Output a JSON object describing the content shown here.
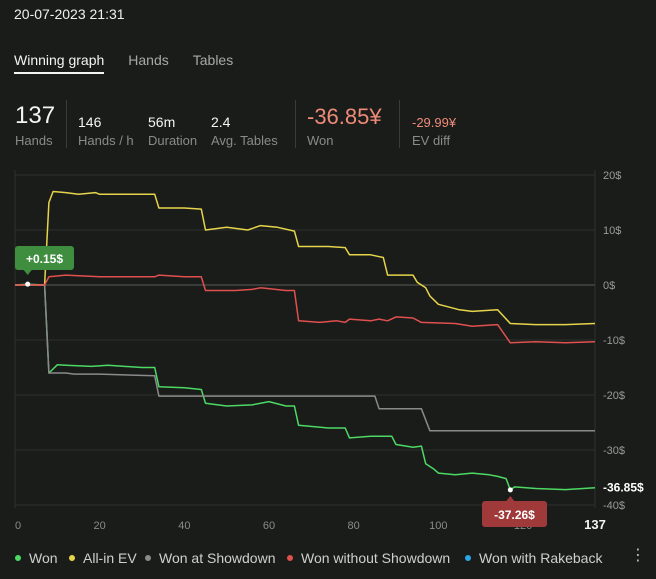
{
  "timestamp": "20-07-2023 21:31",
  "tabs": [
    {
      "label": "Winning graph",
      "active": true
    },
    {
      "label": "Hands",
      "active": false
    },
    {
      "label": "Tables",
      "active": false
    }
  ],
  "stats": {
    "hands": {
      "value": "137",
      "label": "Hands"
    },
    "hands_per_hour": {
      "value": "146",
      "label": "Hands / h"
    },
    "duration": {
      "value": "56m",
      "label": "Duration"
    },
    "avg_tables": {
      "value": "2.4",
      "label": "Avg. Tables"
    },
    "won": {
      "value": "-36.85¥",
      "label": "Won"
    },
    "ev_diff": {
      "value": "-29.99¥",
      "label": "EV diff"
    }
  },
  "colors": {
    "won": "#4cd964",
    "all_in_ev": "#e6d54a",
    "showdown": "#8a8a8a",
    "without_showdown": "#e0504e",
    "rakeback": "#2aa6e6",
    "negative_accent": "#ef8a78",
    "badge_green": "#3f8e3f",
    "badge_red": "#a03a3a"
  },
  "chart_data": {
    "type": "line",
    "xlim": [
      0,
      137
    ],
    "ylim": [
      -40,
      20
    ],
    "x_ticks": [
      "0",
      "20",
      "40",
      "60",
      "80",
      "100",
      "120"
    ],
    "x_end_label": "137",
    "y_ticks": [
      "20$",
      "10$",
      "0$",
      "-10$",
      "-20$",
      "-30$",
      "-40$"
    ],
    "y_tick_values": [
      20,
      10,
      0,
      -10,
      -20,
      -30,
      -40
    ],
    "annotations": [
      {
        "text": "+0.15$",
        "x": 3,
        "y": 0.15
      },
      {
        "text": "-37.26$",
        "x": 117,
        "y": -37.26
      }
    ],
    "end_label": {
      "text": "-36.85$",
      "y": -36.85
    },
    "series": [
      {
        "name": "Won",
        "color": "#4cd964",
        "points": [
          [
            0,
            0
          ],
          [
            3,
            0.15
          ],
          [
            7,
            0
          ],
          [
            8,
            -16
          ],
          [
            10,
            -14.5
          ],
          [
            12,
            -14.6
          ],
          [
            18,
            -14.8
          ],
          [
            22,
            -14.6
          ],
          [
            30,
            -15
          ],
          [
            33,
            -15
          ],
          [
            34,
            -18.5
          ],
          [
            40,
            -18.7
          ],
          [
            44,
            -19
          ],
          [
            45,
            -21.5
          ],
          [
            50,
            -22
          ],
          [
            56,
            -21.8
          ],
          [
            60,
            -21.2
          ],
          [
            64,
            -22
          ],
          [
            66,
            -22
          ],
          [
            67,
            -25.5
          ],
          [
            74,
            -26
          ],
          [
            78,
            -26
          ],
          [
            79,
            -27.8
          ],
          [
            84,
            -27.5
          ],
          [
            89,
            -27.5
          ],
          [
            90,
            -29
          ],
          [
            94,
            -29.5
          ],
          [
            96,
            -29.3
          ],
          [
            97,
            -32.5
          ],
          [
            99,
            -33.5
          ],
          [
            100,
            -34.2
          ],
          [
            104,
            -34.5
          ],
          [
            108,
            -34.2
          ],
          [
            112,
            -34.5
          ],
          [
            114,
            -34.8
          ],
          [
            116,
            -35.2
          ],
          [
            117,
            -37.26
          ],
          [
            118,
            -36.7
          ],
          [
            123,
            -37
          ],
          [
            130,
            -37.2
          ],
          [
            137,
            -36.85
          ]
        ]
      },
      {
        "name": "All-in EV",
        "color": "#e6d54a",
        "points": [
          [
            0,
            0
          ],
          [
            7,
            0
          ],
          [
            8,
            15
          ],
          [
            9,
            17
          ],
          [
            12,
            16.8
          ],
          [
            15,
            16.5
          ],
          [
            19,
            16.8
          ],
          [
            20,
            16.5
          ],
          [
            33,
            16.5
          ],
          [
            34,
            14
          ],
          [
            40,
            14
          ],
          [
            44,
            13.8
          ],
          [
            45,
            10
          ],
          [
            50,
            10.5
          ],
          [
            55,
            10
          ],
          [
            58,
            10.8
          ],
          [
            62,
            10.5
          ],
          [
            66,
            9.8
          ],
          [
            67,
            7
          ],
          [
            74,
            7
          ],
          [
            78,
            6.8
          ],
          [
            79,
            5.5
          ],
          [
            84,
            5.5
          ],
          [
            87,
            5
          ],
          [
            88,
            1.8
          ],
          [
            94,
            1.8
          ],
          [
            95,
            0.5
          ],
          [
            97,
            -0.5
          ],
          [
            98,
            -2
          ],
          [
            100,
            -3.5
          ],
          [
            105,
            -4.5
          ],
          [
            108,
            -4.8
          ],
          [
            114,
            -4.5
          ],
          [
            117,
            -7
          ],
          [
            123,
            -7.2
          ],
          [
            130,
            -7.2
          ],
          [
            137,
            -7
          ]
        ]
      },
      {
        "name": "Won at Showdown",
        "color": "#8a8a8a",
        "points": [
          [
            0,
            0
          ],
          [
            7,
            0
          ],
          [
            8,
            -16
          ],
          [
            12,
            -16
          ],
          [
            14,
            -16.2
          ],
          [
            20,
            -16.2
          ],
          [
            33,
            -16.5
          ],
          [
            34,
            -20.2
          ],
          [
            50,
            -20.2
          ],
          [
            60,
            -20.2
          ],
          [
            65,
            -20.2
          ],
          [
            85,
            -20.2
          ],
          [
            86,
            -22.5
          ],
          [
            96,
            -22.5
          ],
          [
            98,
            -26.5
          ],
          [
            137,
            -26.5
          ]
        ]
      },
      {
        "name": "Won without Showdown",
        "color": "#e0504e",
        "points": [
          [
            0,
            0
          ],
          [
            7,
            0
          ],
          [
            8,
            1.5
          ],
          [
            12,
            1.8
          ],
          [
            20,
            1.5
          ],
          [
            33,
            1.5
          ],
          [
            34,
            1.8
          ],
          [
            40,
            1.5
          ],
          [
            44,
            1.5
          ],
          [
            45,
            -1
          ],
          [
            52,
            -1
          ],
          [
            56,
            -0.8
          ],
          [
            58,
            -0.5
          ],
          [
            64,
            -1
          ],
          [
            66,
            -1
          ],
          [
            67,
            -6.5
          ],
          [
            72,
            -6.8
          ],
          [
            76,
            -6.5
          ],
          [
            78,
            -6.8
          ],
          [
            79,
            -6.2
          ],
          [
            84,
            -6.5
          ],
          [
            86,
            -6.2
          ],
          [
            88,
            -6.5
          ],
          [
            90,
            -5.8
          ],
          [
            94,
            -6
          ],
          [
            96,
            -6.8
          ],
          [
            104,
            -7
          ],
          [
            108,
            -7.5
          ],
          [
            114,
            -7.2
          ],
          [
            117,
            -10.5
          ],
          [
            123,
            -10.3
          ],
          [
            130,
            -10.5
          ],
          [
            137,
            -10.3
          ]
        ]
      }
    ]
  },
  "legend": [
    {
      "label": "Won",
      "color": "#4cd964"
    },
    {
      "label": "All-in EV",
      "color": "#e6d54a"
    },
    {
      "label": "Won at Showdown",
      "color": "#8a8a8a"
    },
    {
      "label": "Won without Showdown",
      "color": "#e0504e"
    },
    {
      "label": "Won with Rakeback",
      "color": "#2aa6e6"
    }
  ],
  "menu_icon": "kebab-icon"
}
